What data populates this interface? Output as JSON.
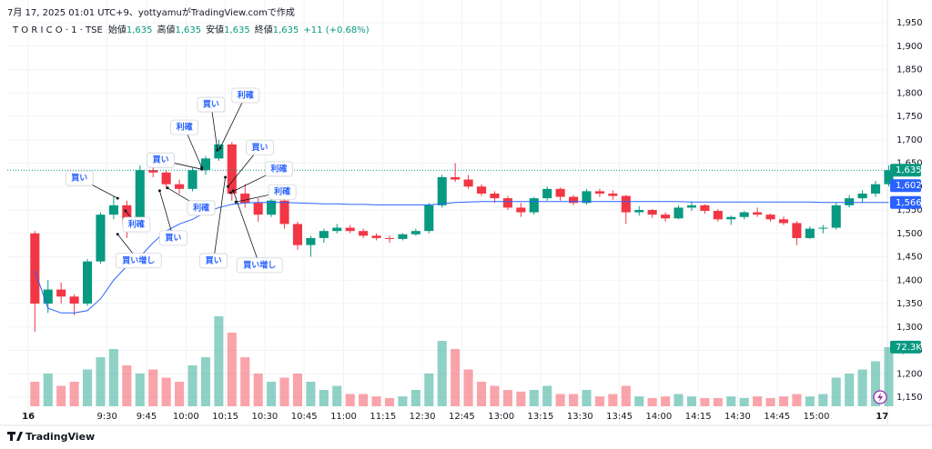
{
  "header": {
    "credit": "7月 17, 2025 01:01 UTC+9、yottyamuがTradingView.comで作成",
    "symbol": "T O R I C O · 1 · TSE",
    "ohlc": [
      {
        "label": "始値",
        "value": "1,635"
      },
      {
        "label": "高値",
        "value": "1,635"
      },
      {
        "label": "安値",
        "value": "1,635"
      },
      {
        "label": "終値",
        "value": "1,635"
      }
    ],
    "change": "+11 (+0.68%)"
  },
  "footer": {
    "brand": "TradingView"
  },
  "chart_data": {
    "type": "candlestick",
    "x": [
      0,
      5,
      10,
      15,
      20,
      25,
      30,
      35,
      40,
      45,
      50,
      55,
      60,
      65,
      70,
      75,
      80,
      85,
      90,
      95,
      100,
      105,
      110,
      115,
      120,
      125,
      130,
      135,
      140,
      145,
      150,
      155,
      160,
      165,
      170,
      175,
      180,
      185,
      190,
      195,
      200,
      205,
      210,
      215,
      220,
      225,
      230,
      235,
      240,
      245,
      250,
      255,
      260,
      265,
      270,
      275,
      280,
      285,
      290,
      295,
      300,
      305,
      310,
      315,
      320,
      325
    ],
    "open": [
      1500,
      1350,
      1380,
      1365,
      1350,
      1440,
      1540,
      1560,
      1520,
      1635,
      1630,
      1605,
      1595,
      1635,
      1660,
      1690,
      1585,
      1565,
      1540,
      1570,
      1520,
      1475,
      1490,
      1505,
      1512,
      1505,
      1495,
      1490,
      1488,
      1498,
      1505,
      1560,
      1620,
      1615,
      1600,
      1585,
      1575,
      1555,
      1545,
      1575,
      1595,
      1578,
      1565,
      1590,
      1585,
      1580,
      1545,
      1550,
      1540,
      1532,
      1555,
      1560,
      1548,
      1530,
      1535,
      1545,
      1540,
      1530,
      1522,
      1490,
      1510,
      1512,
      1560,
      1575,
      1585,
      1605
    ],
    "high": [
      1505,
      1400,
      1395,
      1370,
      1445,
      1545,
      1580,
      1570,
      1645,
      1650,
      1635,
      1615,
      1640,
      1665,
      1700,
      1695,
      1605,
      1575,
      1580,
      1575,
      1525,
      1495,
      1510,
      1520,
      1518,
      1510,
      1500,
      1495,
      1500,
      1510,
      1565,
      1625,
      1650,
      1625,
      1605,
      1590,
      1580,
      1565,
      1578,
      1600,
      1598,
      1582,
      1595,
      1595,
      1592,
      1582,
      1558,
      1552,
      1545,
      1560,
      1568,
      1562,
      1552,
      1538,
      1548,
      1555,
      1542,
      1536,
      1526,
      1515,
      1518,
      1565,
      1582,
      1592,
      1612,
      1645
    ],
    "low": [
      1290,
      1330,
      1350,
      1325,
      1345,
      1435,
      1530,
      1490,
      1515,
      1620,
      1595,
      1585,
      1590,
      1625,
      1655,
      1570,
      1555,
      1525,
      1535,
      1510,
      1465,
      1450,
      1480,
      1500,
      1500,
      1490,
      1485,
      1480,
      1485,
      1495,
      1500,
      1555,
      1610,
      1595,
      1580,
      1565,
      1550,
      1535,
      1540,
      1570,
      1570,
      1560,
      1562,
      1578,
      1572,
      1520,
      1538,
      1533,
      1525,
      1530,
      1548,
      1542,
      1525,
      1518,
      1530,
      1535,
      1525,
      1518,
      1475,
      1488,
      1500,
      1508,
      1555,
      1565,
      1578,
      1600
    ],
    "close": [
      1350,
      1380,
      1365,
      1350,
      1440,
      1540,
      1560,
      1520,
      1635,
      1630,
      1605,
      1595,
      1635,
      1660,
      1690,
      1585,
      1565,
      1540,
      1570,
      1520,
      1475,
      1490,
      1505,
      1512,
      1505,
      1495,
      1490,
      1488,
      1498,
      1505,
      1560,
      1620,
      1615,
      1600,
      1585,
      1575,
      1555,
      1545,
      1575,
      1595,
      1578,
      1565,
      1590,
      1585,
      1580,
      1545,
      1550,
      1540,
      1532,
      1555,
      1560,
      1548,
      1530,
      1535,
      1545,
      1540,
      1530,
      1522,
      1490,
      1510,
      1512,
      1560,
      1575,
      1585,
      1605,
      1635
    ],
    "volume": [
      30,
      40,
      25,
      30,
      45,
      60,
      70,
      50,
      40,
      45,
      35,
      30,
      50,
      60,
      110,
      90,
      60,
      40,
      30,
      35,
      40,
      30,
      20,
      25,
      15,
      15,
      12,
      10,
      12,
      20,
      40,
      80,
      70,
      45,
      30,
      25,
      20,
      18,
      20,
      25,
      15,
      15,
      20,
      12,
      15,
      25,
      12,
      10,
      12,
      15,
      12,
      10,
      10,
      12,
      10,
      12,
      10,
      12,
      15,
      12,
      15,
      35,
      40,
      45,
      55,
      72.3
    ],
    "volume_labels": {
      "65": "72.3K"
    },
    "vwap": [
      1420,
      1340,
      1330,
      1330,
      1335,
      1360,
      1400,
      1430,
      1450,
      1480,
      1505,
      1520,
      1530,
      1545,
      1555,
      1562,
      1565,
      1566,
      1566,
      1566,
      1565,
      1564,
      1563,
      1563,
      1562,
      1562,
      1561,
      1561,
      1561,
      1561,
      1561,
      1563,
      1566,
      1567,
      1568,
      1568,
      1568,
      1568,
      1568,
      1568,
      1568,
      1568,
      1568,
      1568,
      1568,
      1568,
      1568,
      1568,
      1568,
      1568,
      1567,
      1567,
      1567,
      1567,
      1567,
      1567,
      1567,
      1567,
      1567,
      1567,
      1566,
      1566,
      1566,
      1566,
      1566,
      1566
    ],
    "vwap_color": "#2962ff",
    "up_color": "#089981",
    "down_color": "#f23645",
    "price_tags": [
      {
        "value": 1635,
        "label": "1,635",
        "color": "#089981"
      },
      {
        "value": 1602,
        "label": "1,602",
        "color": "#2962ff"
      },
      {
        "value": 1566,
        "label": "1,566",
        "color": "#2962ff"
      }
    ],
    "annotations": [
      {
        "text": "買い",
        "x": 34,
        "price": 1575
      },
      {
        "text": "利確",
        "x": 37,
        "price": 1548
      },
      {
        "text": "買い増し",
        "x": 34,
        "price": 1498
      },
      {
        "text": "買い",
        "x": 66,
        "price": 1637
      },
      {
        "text": "利確",
        "x": 66,
        "price": 1641
      },
      {
        "text": "買い",
        "x": 72,
        "price": 1678
      },
      {
        "text": "利確",
        "x": 73,
        "price": 1682
      },
      {
        "text": "買い",
        "x": 50,
        "price": 1591
      },
      {
        "text": "利確",
        "x": 53,
        "price": 1597
      },
      {
        "text": "買い",
        "x": 76,
        "price": 1600
      },
      {
        "text": "利確",
        "x": 77,
        "price": 1587
      },
      {
        "text": "利確",
        "x": 79,
        "price": 1567
      },
      {
        "text": "買い",
        "x": 75,
        "price": 1620
      },
      {
        "text": "買い増し",
        "x": 78,
        "price": 1591
      }
    ],
    "xlim": [
      -8,
      327
    ],
    "xticks": [
      {
        "value": 0,
        "label": "16"
      },
      {
        "value": 30,
        "label": "9:30"
      },
      {
        "value": 45,
        "label": "9:45"
      },
      {
        "value": 60,
        "label": "10:00"
      },
      {
        "value": 75,
        "label": "10:15"
      },
      {
        "value": 90,
        "label": "10:30"
      },
      {
        "value": 105,
        "label": "10:45"
      },
      {
        "value": 120,
        "label": "11:00"
      },
      {
        "value": 135,
        "label": "11:15"
      },
      {
        "value": 150,
        "label": "12:30"
      },
      {
        "value": 165,
        "label": "12:45"
      },
      {
        "value": 180,
        "label": "13:00"
      },
      {
        "value": 195,
        "label": "13:15"
      },
      {
        "value": 210,
        "label": "13:30"
      },
      {
        "value": 225,
        "label": "13:45"
      },
      {
        "value": 240,
        "label": "14:00"
      },
      {
        "value": 255,
        "label": "14:15"
      },
      {
        "value": 270,
        "label": "14:30"
      },
      {
        "value": 285,
        "label": "14:45"
      },
      {
        "value": 300,
        "label": "15:00"
      },
      {
        "value": 325,
        "label": "17"
      }
    ],
    "ylim": [
      1150,
      1950
    ],
    "yticks": [
      {
        "value": 1150,
        "label": "1,150"
      },
      {
        "value": 1200,
        "label": "1,200"
      },
      {
        "value": 1250,
        "label": "1,250"
      },
      {
        "value": 1300,
        "label": "1,300"
      },
      {
        "value": 1350,
        "label": "1,350"
      },
      {
        "value": 1400,
        "label": "1,400"
      },
      {
        "value": 1450,
        "label": "1,450"
      },
      {
        "value": 1500,
        "label": "1,500"
      },
      {
        "value": 1550,
        "label": "1,550"
      },
      {
        "value": 1600,
        "label": "1,600"
      },
      {
        "value": 1650,
        "label": "1,650"
      },
      {
        "value": 1700,
        "label": "1,700"
      },
      {
        "value": 1750,
        "label": "1,750"
      },
      {
        "value": 1800,
        "label": "1,800"
      },
      {
        "value": 1850,
        "label": "1,850"
      },
      {
        "value": 1900,
        "label": "1,900"
      },
      {
        "value": 1950,
        "label": "1,950"
      }
    ],
    "grid": true
  }
}
